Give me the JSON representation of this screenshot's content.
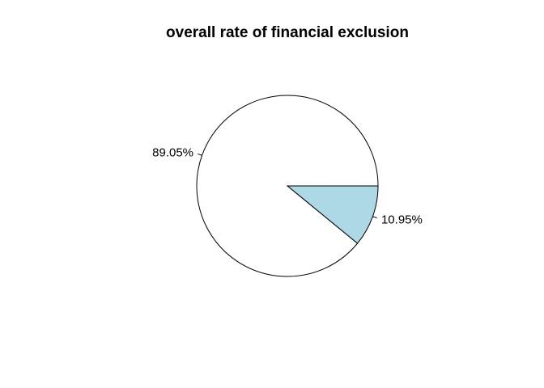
{
  "chart_data": {
    "type": "pie",
    "title": "overall rate of financial exclusion",
    "slices": [
      {
        "label": "10.95%",
        "value": 10.95,
        "color": "#add8e6"
      },
      {
        "label": "89.05%",
        "value": 89.05,
        "color": "#ffffff"
      }
    ],
    "start_angle_deg": 0,
    "direction": "clockwise",
    "outline_color": "#000000"
  }
}
